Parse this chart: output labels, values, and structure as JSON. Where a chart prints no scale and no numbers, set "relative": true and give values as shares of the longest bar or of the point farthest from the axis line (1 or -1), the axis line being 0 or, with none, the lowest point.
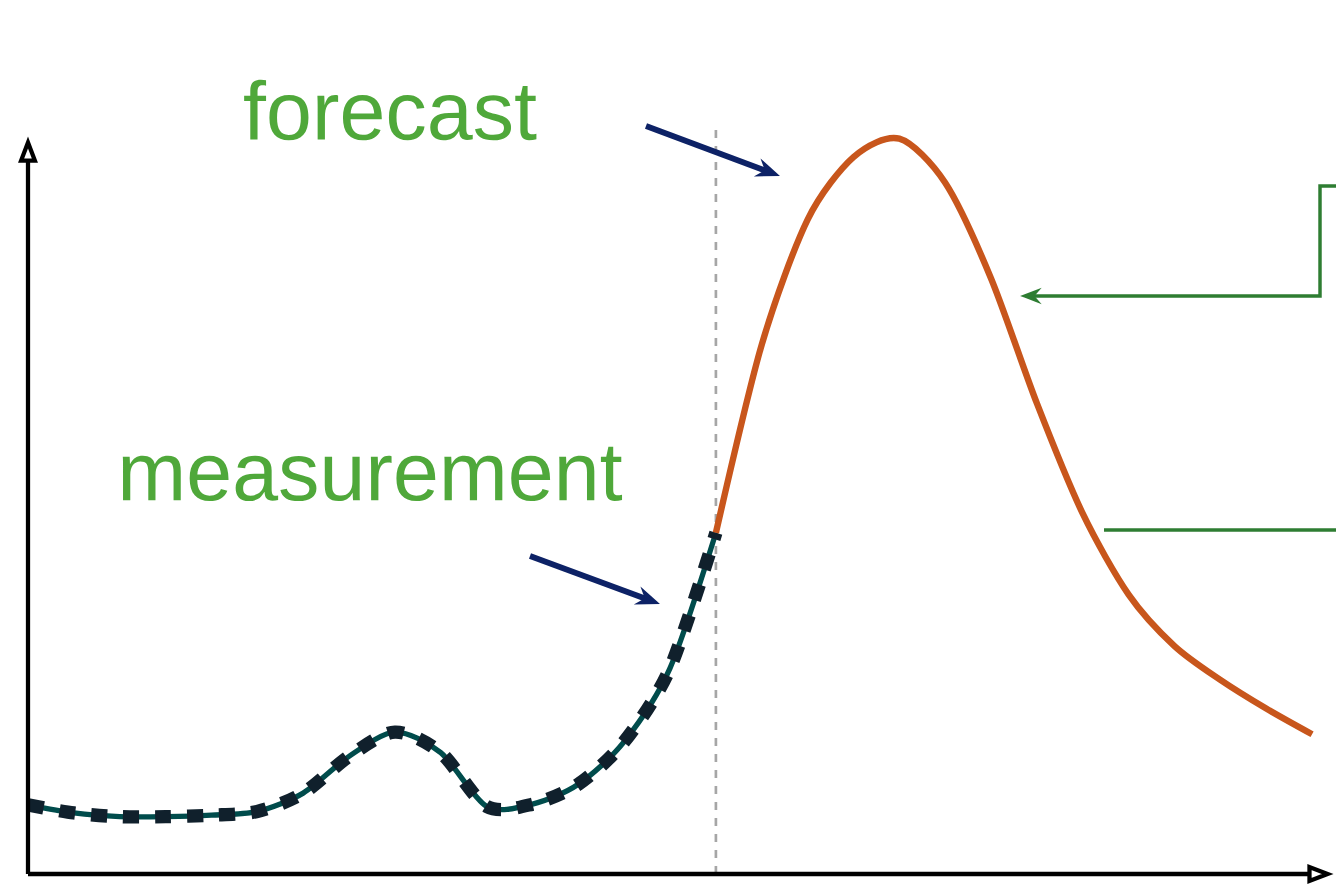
{
  "chart_data": {
    "type": "line",
    "relative": true,
    "categories": [
      null,
      null,
      null,
      null,
      null,
      null,
      null,
      null,
      null,
      null,
      null,
      null,
      null,
      null,
      null,
      null,
      null,
      null,
      null,
      null,
      null,
      null,
      null,
      null,
      null,
      null,
      null,
      null,
      null
    ],
    "series": [
      {
        "color": "#10202c",
        "line_style": "dashed",
        "values": [
          0.094,
          0.083,
          0.078,
          0.078,
          0.08,
          0.085,
          0.11,
          0.16,
          0.193,
          0.165,
          0.092,
          0.095,
          0.122,
          0.18,
          0.28,
          0.464,
          null,
          null,
          null,
          null,
          null,
          null,
          null,
          null,
          null,
          null,
          null,
          null,
          null
        ]
      },
      {
        "color": "#c8561c",
        "line_style": "solid",
        "values": [
          null,
          null,
          null,
          null,
          null,
          null,
          null,
          null,
          null,
          null,
          null,
          null,
          null,
          null,
          null,
          0.464,
          0.72,
          0.89,
          0.975,
          1.0,
          0.94,
          0.81,
          0.64,
          0.49,
          0.38,
          0.31,
          0.264,
          0.225,
          0.19
        ]
      }
    ],
    "annotations": [
      "forecast",
      "measurement"
    ],
    "marker": "none"
  }
}
